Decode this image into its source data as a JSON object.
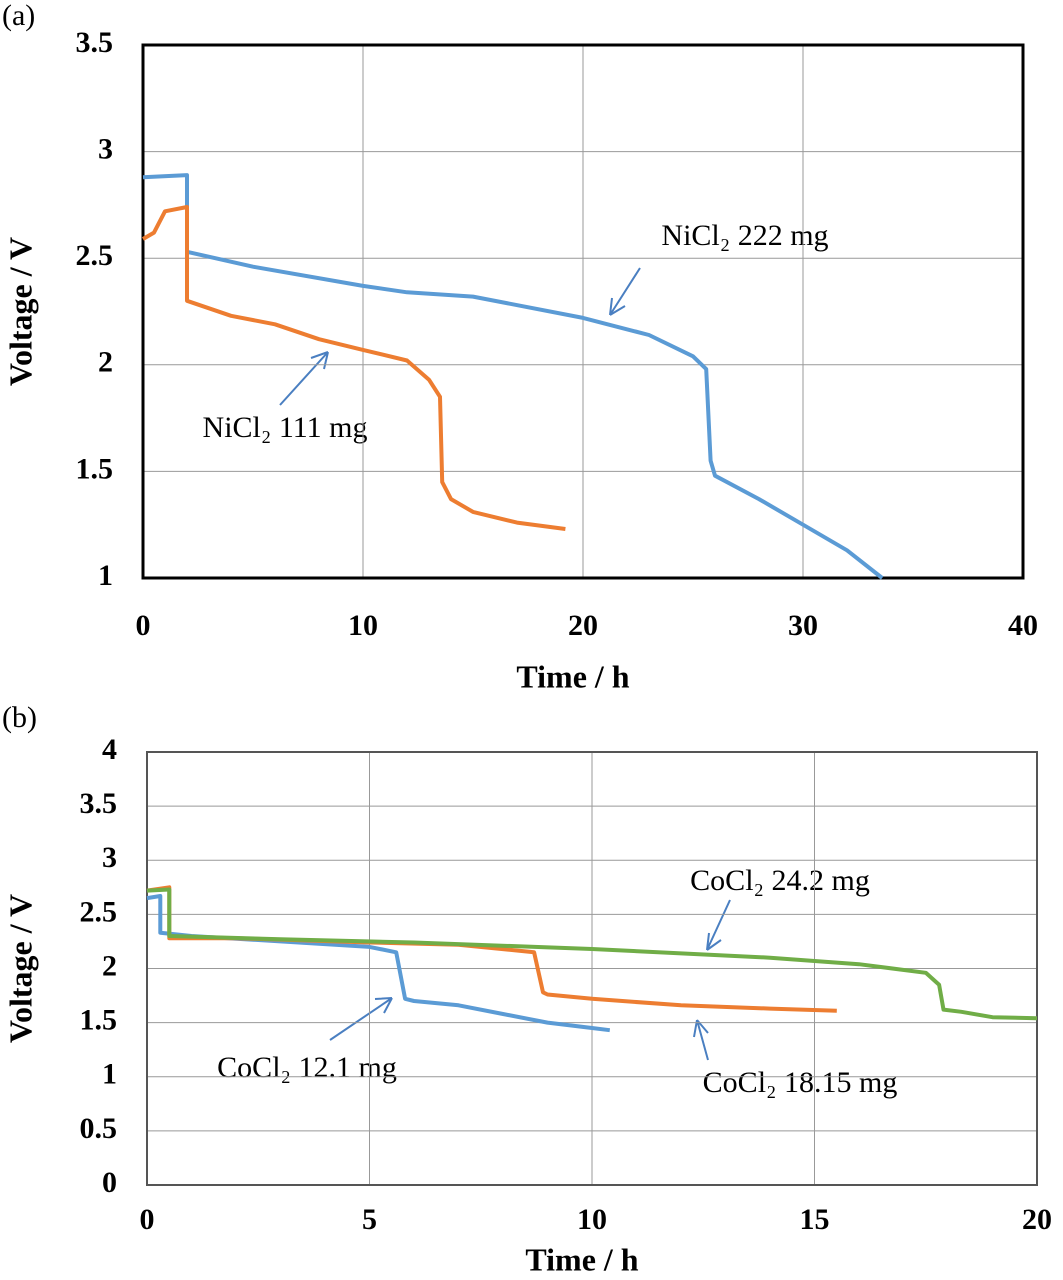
{
  "chart_data": [
    {
      "type": "line",
      "label": "(a)",
      "xlabel": "Time / h",
      "ylabel": "Voltage / V",
      "xlim": [
        0,
        40
      ],
      "xticks": [
        0,
        10,
        20,
        30,
        40
      ],
      "ylim": [
        1,
        3.5
      ],
      "yticks": [
        1,
        1.5,
        2,
        2.5,
        3,
        3.5
      ],
      "grid": true,
      "series": [
        {
          "name": "NiCl₂  222  mg",
          "color": "#5b9bd5",
          "x": [
            0,
            2.0,
            2.0,
            5,
            10,
            12,
            15,
            20,
            23,
            25,
            25.6,
            25.8,
            26,
            28,
            30,
            32,
            33.6
          ],
          "values": [
            2.88,
            2.89,
            2.53,
            2.46,
            2.37,
            2.34,
            2.32,
            2.22,
            2.14,
            2.04,
            1.98,
            1.55,
            1.48,
            1.37,
            1.25,
            1.13,
            1.0
          ]
        },
        {
          "name": "NiCl₂ 111 mg",
          "color": "#ed7d31",
          "x": [
            0,
            0.5,
            1,
            2,
            2.0,
            4,
            6,
            8,
            10,
            12,
            13,
            13.5,
            13.6,
            14,
            15,
            17,
            19.2
          ],
          "values": [
            2.59,
            2.62,
            2.72,
            2.74,
            2.3,
            2.23,
            2.19,
            2.12,
            2.07,
            2.02,
            1.93,
            1.85,
            1.45,
            1.37,
            1.31,
            1.26,
            1.23
          ]
        }
      ]
    },
    {
      "type": "line",
      "label": "(b)",
      "xlabel": "Time / h",
      "ylabel": "Voltage / V",
      "xlim": [
        0,
        20
      ],
      "xticks": [
        0,
        5,
        10,
        15,
        20
      ],
      "ylim": [
        0,
        4
      ],
      "yticks": [
        0,
        0.5,
        1,
        1.5,
        2,
        2.5,
        3,
        3.5,
        4
      ],
      "grid": true,
      "series": [
        {
          "name": "CoCl₂ 12.1 mg",
          "color": "#5b9bd5",
          "x": [
            0,
            0.3,
            0.3,
            1,
            3,
            5,
            5.6,
            5.8,
            6,
            7,
            8,
            9,
            10,
            10.4
          ],
          "values": [
            2.65,
            2.67,
            2.33,
            2.3,
            2.25,
            2.2,
            2.15,
            1.72,
            1.7,
            1.66,
            1.58,
            1.5,
            1.45,
            1.43
          ]
        },
        {
          "name": "CoCl₂ 18.15 mg",
          "color": "#ed7d31",
          "x": [
            0,
            0.5,
            0.5,
            2,
            5,
            7,
            8.7,
            8.9,
            9,
            10,
            12,
            14,
            15.5
          ],
          "values": [
            2.72,
            2.75,
            2.28,
            2.28,
            2.24,
            2.22,
            2.15,
            1.78,
            1.76,
            1.72,
            1.66,
            1.63,
            1.61
          ]
        },
        {
          "name": "CoCl₂ 24.2 mg",
          "color": "#70ad47",
          "x": [
            0,
            0.5,
            0.5,
            3,
            6,
            10,
            14,
            16,
            17.5,
            17.8,
            17.9,
            18.3,
            19,
            20
          ],
          "values": [
            2.72,
            2.73,
            2.3,
            2.27,
            2.24,
            2.18,
            2.1,
            2.04,
            1.96,
            1.85,
            1.62,
            1.6,
            1.55,
            1.54
          ]
        }
      ]
    }
  ]
}
